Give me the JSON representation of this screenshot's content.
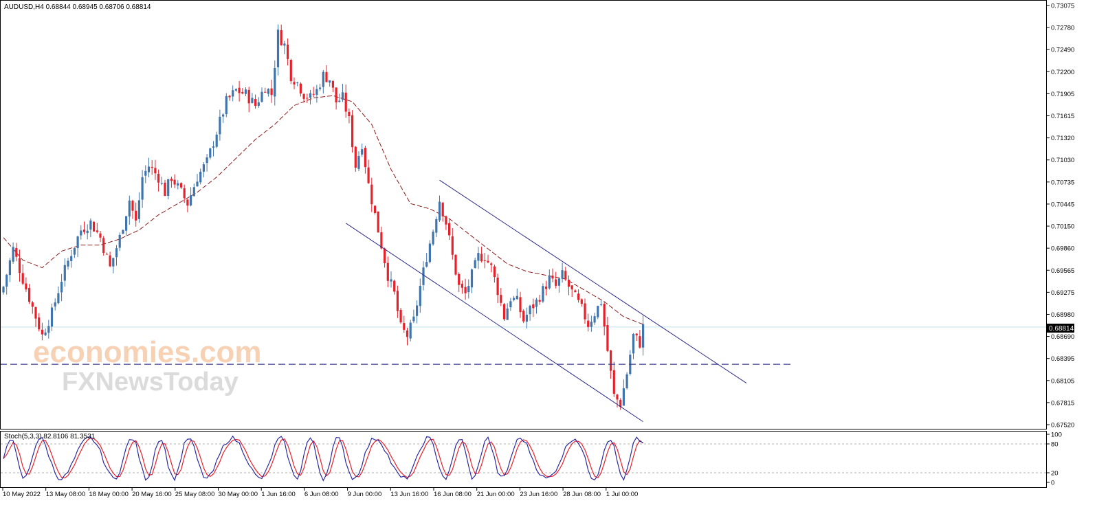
{
  "header": {
    "symbol_info": "AUDUSD,H4  0.68844 0.68945 0.68706 0.68814"
  },
  "stoch_header": "Stoch(5,3,3) 82.8106 81.3531",
  "watermark": {
    "line1": "economies.com",
    "line2": "FXNewsToday"
  },
  "current_price_label": "0.68814",
  "chart_data": [
    {
      "type": "candlestick",
      "title": "AUDUSD,H4",
      "ohlc_readout": [
        "0.68844",
        "0.68945",
        "0.68706",
        "0.68814"
      ],
      "y_ticks": [
        "0.73075",
        "0.72780",
        "0.72490",
        "0.72200",
        "0.71905",
        "0.71615",
        "0.71320",
        "0.71030",
        "0.70735",
        "0.70445",
        "0.70150",
        "0.69860",
        "0.69565",
        "0.69275",
        "0.68980",
        "0.68690",
        "0.68395",
        "0.68105",
        "0.67815",
        "0.67520"
      ],
      "x_ticks": [
        "10 May 2022",
        "13 May 08:00",
        "18 May 00:00",
        "20 May 16:00",
        "25 May 08:00",
        "30 May 00:00",
        "1 Jun 16:00",
        "6 Jun 08:00",
        "9 Jun 00:00",
        "13 Jun 16:00",
        "16 Jun 08:00",
        "21 Jun 00:00",
        "23 Jun 16:00",
        "28 Jun 08:00",
        "1 Jul 00:00"
      ],
      "ylim": [
        0.6752,
        0.73075
      ],
      "current_price": 0.68814,
      "support_level": 0.6832,
      "colors": {
        "up": "#3f74ad",
        "down": "#e8202a",
        "ma": "#8b1a1a",
        "channel": "#2a2a8a",
        "support": "#3b3b9a",
        "price_line": "#bfe3ea"
      },
      "close_waypoints": [
        [
          0,
          0.6935
        ],
        [
          3,
          0.6985
        ],
        [
          6,
          0.6945
        ],
        [
          8,
          0.692
        ],
        [
          10,
          0.6895
        ],
        [
          12,
          0.687
        ],
        [
          15,
          0.69
        ],
        [
          18,
          0.6945
        ],
        [
          21,
          0.698
        ],
        [
          24,
          0.701
        ],
        [
          27,
          0.702
        ],
        [
          30,
          0.7
        ],
        [
          33,
          0.696
        ],
        [
          36,
          0.7
        ],
        [
          39,
          0.705
        ],
        [
          41,
          0.702
        ],
        [
          43,
          0.708
        ],
        [
          45,
          0.7095
        ],
        [
          48,
          0.708
        ],
        [
          50,
          0.706
        ],
        [
          52,
          0.708
        ],
        [
          55,
          0.706
        ],
        [
          57,
          0.7045
        ],
        [
          60,
          0.708
        ],
        [
          63,
          0.71
        ],
        [
          66,
          0.714
        ],
        [
          69,
          0.718
        ],
        [
          72,
          0.7195
        ],
        [
          75,
          0.719
        ],
        [
          78,
          0.7175
        ],
        [
          81,
          0.72
        ],
        [
          83,
          0.719
        ],
        [
          85,
          0.727
        ],
        [
          87,
          0.7255
        ],
        [
          89,
          0.7215
        ],
        [
          91,
          0.7205
        ],
        [
          93,
          0.719
        ],
        [
          95,
          0.7185
        ],
        [
          97,
          0.7195
        ],
        [
          99,
          0.7215
        ],
        [
          101,
          0.721
        ],
        [
          103,
          0.718
        ],
        [
          105,
          0.7185
        ],
        [
          107,
          0.7155
        ],
        [
          109,
          0.7095
        ],
        [
          111,
          0.7125
        ],
        [
          113,
          0.707
        ],
        [
          115,
          0.703
        ],
        [
          117,
          0.699
        ],
        [
          119,
          0.695
        ],
        [
          121,
          0.6925
        ],
        [
          123,
          0.688
        ],
        [
          125,
          0.687
        ],
        [
          127,
          0.689
        ],
        [
          129,
          0.6935
        ],
        [
          131,
          0.6975
        ],
        [
          133,
          0.701
        ],
        [
          135,
          0.705
        ],
        [
          137,
          0.702
        ],
        [
          139,
          0.6975
        ],
        [
          141,
          0.6935
        ],
        [
          143,
          0.6925
        ],
        [
          145,
          0.695
        ],
        [
          147,
          0.6975
        ],
        [
          149,
          0.6975
        ],
        [
          151,
          0.696
        ],
        [
          153,
          0.693
        ],
        [
          155,
          0.6895
        ],
        [
          157,
          0.692
        ],
        [
          159,
          0.6915
        ],
        [
          161,
          0.689
        ],
        [
          163,
          0.6905
        ],
        [
          165,
          0.6915
        ],
        [
          167,
          0.693
        ],
        [
          169,
          0.6945
        ],
        [
          171,
          0.6935
        ],
        [
          173,
          0.695
        ],
        [
          175,
          0.6935
        ],
        [
          177,
          0.692
        ],
        [
          179,
          0.6905
        ],
        [
          181,
          0.6885
        ],
        [
          183,
          0.69
        ],
        [
          185,
          0.6915
        ],
        [
          187,
          0.685
        ],
        [
          189,
          0.679
        ],
        [
          191,
          0.678
        ],
        [
          193,
          0.682
        ],
        [
          195,
          0.687
        ],
        [
          197,
          0.686
        ],
        [
          198,
          0.68814
        ]
      ],
      "ma_points": [
        [
          0,
          0.7
        ],
        [
          6,
          0.697
        ],
        [
          12,
          0.696
        ],
        [
          18,
          0.6982
        ],
        [
          24,
          0.699
        ],
        [
          30,
          0.699
        ],
        [
          36,
          0.6998
        ],
        [
          42,
          0.701
        ],
        [
          48,
          0.703
        ],
        [
          54,
          0.7045
        ],
        [
          60,
          0.706
        ],
        [
          66,
          0.708
        ],
        [
          72,
          0.7105
        ],
        [
          78,
          0.713
        ],
        [
          84,
          0.715
        ],
        [
          90,
          0.7175
        ],
        [
          96,
          0.7185
        ],
        [
          102,
          0.7188
        ],
        [
          108,
          0.718
        ],
        [
          114,
          0.715
        ],
        [
          120,
          0.709
        ],
        [
          126,
          0.7045
        ],
        [
          132,
          0.7038
        ],
        [
          138,
          0.7025
        ],
        [
          144,
          0.7005
        ],
        [
          150,
          0.6985
        ],
        [
          156,
          0.6965
        ],
        [
          162,
          0.6955
        ],
        [
          168,
          0.695
        ],
        [
          174,
          0.6945
        ],
        [
          180,
          0.693
        ],
        [
          186,
          0.6915
        ],
        [
          192,
          0.6895
        ],
        [
          198,
          0.6885
        ]
      ],
      "channel": {
        "upper": [
          [
            135,
            0.7076
          ],
          [
            230,
            0.6807
          ]
        ],
        "lower": [
          [
            106,
            0.7019
          ],
          [
            198,
            0.6756
          ]
        ]
      }
    },
    {
      "type": "line",
      "title": "Stoch(5,3,3)",
      "main_value": "82.8106",
      "signal_value": "81.3531",
      "y_ticks": [
        "100",
        "80",
        "20",
        "0"
      ],
      "levels": [
        80,
        20
      ],
      "ylim": [
        0,
        100
      ],
      "colors": {
        "main": "#2a2aa0",
        "signal": "#e8202a",
        "level": "#b0b0b0"
      }
    }
  ]
}
